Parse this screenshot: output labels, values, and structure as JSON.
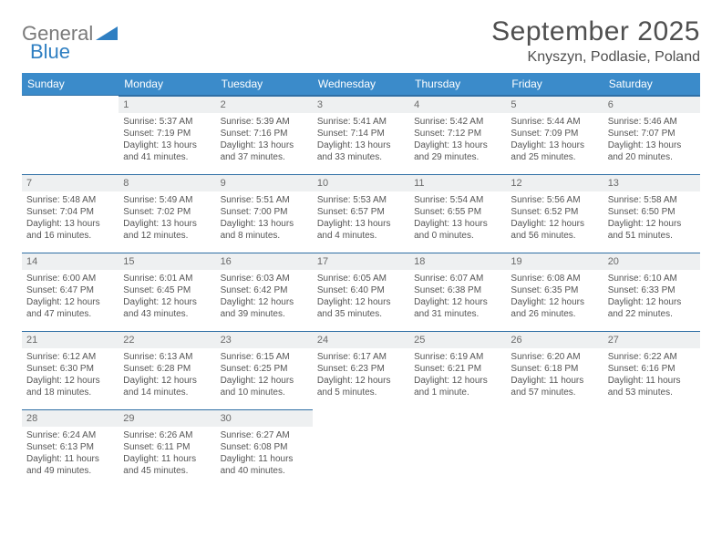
{
  "brand": {
    "part1": "General",
    "part2": "Blue"
  },
  "title": "September 2025",
  "location": "Knyszyn, Podlasie, Poland",
  "colors": {
    "header_bg": "#3b8bca",
    "header_border": "#2f6fa5",
    "daybar_bg": "#eef0f1",
    "text": "#4f4f4f",
    "brand_gray": "#7a7a7a",
    "brand_blue": "#2f7fc2"
  },
  "weekdays": [
    "Sunday",
    "Monday",
    "Tuesday",
    "Wednesday",
    "Thursday",
    "Friday",
    "Saturday"
  ],
  "weeks": [
    [
      null,
      {
        "n": "1",
        "sr": "Sunrise: 5:37 AM",
        "ss": "Sunset: 7:19 PM",
        "dl1": "Daylight: 13 hours",
        "dl2": "and 41 minutes."
      },
      {
        "n": "2",
        "sr": "Sunrise: 5:39 AM",
        "ss": "Sunset: 7:16 PM",
        "dl1": "Daylight: 13 hours",
        "dl2": "and 37 minutes."
      },
      {
        "n": "3",
        "sr": "Sunrise: 5:41 AM",
        "ss": "Sunset: 7:14 PM",
        "dl1": "Daylight: 13 hours",
        "dl2": "and 33 minutes."
      },
      {
        "n": "4",
        "sr": "Sunrise: 5:42 AM",
        "ss": "Sunset: 7:12 PM",
        "dl1": "Daylight: 13 hours",
        "dl2": "and 29 minutes."
      },
      {
        "n": "5",
        "sr": "Sunrise: 5:44 AM",
        "ss": "Sunset: 7:09 PM",
        "dl1": "Daylight: 13 hours",
        "dl2": "and 25 minutes."
      },
      {
        "n": "6",
        "sr": "Sunrise: 5:46 AM",
        "ss": "Sunset: 7:07 PM",
        "dl1": "Daylight: 13 hours",
        "dl2": "and 20 minutes."
      }
    ],
    [
      {
        "n": "7",
        "sr": "Sunrise: 5:48 AM",
        "ss": "Sunset: 7:04 PM",
        "dl1": "Daylight: 13 hours",
        "dl2": "and 16 minutes."
      },
      {
        "n": "8",
        "sr": "Sunrise: 5:49 AM",
        "ss": "Sunset: 7:02 PM",
        "dl1": "Daylight: 13 hours",
        "dl2": "and 12 minutes."
      },
      {
        "n": "9",
        "sr": "Sunrise: 5:51 AM",
        "ss": "Sunset: 7:00 PM",
        "dl1": "Daylight: 13 hours",
        "dl2": "and 8 minutes."
      },
      {
        "n": "10",
        "sr": "Sunrise: 5:53 AM",
        "ss": "Sunset: 6:57 PM",
        "dl1": "Daylight: 13 hours",
        "dl2": "and 4 minutes."
      },
      {
        "n": "11",
        "sr": "Sunrise: 5:54 AM",
        "ss": "Sunset: 6:55 PM",
        "dl1": "Daylight: 13 hours",
        "dl2": "and 0 minutes."
      },
      {
        "n": "12",
        "sr": "Sunrise: 5:56 AM",
        "ss": "Sunset: 6:52 PM",
        "dl1": "Daylight: 12 hours",
        "dl2": "and 56 minutes."
      },
      {
        "n": "13",
        "sr": "Sunrise: 5:58 AM",
        "ss": "Sunset: 6:50 PM",
        "dl1": "Daylight: 12 hours",
        "dl2": "and 51 minutes."
      }
    ],
    [
      {
        "n": "14",
        "sr": "Sunrise: 6:00 AM",
        "ss": "Sunset: 6:47 PM",
        "dl1": "Daylight: 12 hours",
        "dl2": "and 47 minutes."
      },
      {
        "n": "15",
        "sr": "Sunrise: 6:01 AM",
        "ss": "Sunset: 6:45 PM",
        "dl1": "Daylight: 12 hours",
        "dl2": "and 43 minutes."
      },
      {
        "n": "16",
        "sr": "Sunrise: 6:03 AM",
        "ss": "Sunset: 6:42 PM",
        "dl1": "Daylight: 12 hours",
        "dl2": "and 39 minutes."
      },
      {
        "n": "17",
        "sr": "Sunrise: 6:05 AM",
        "ss": "Sunset: 6:40 PM",
        "dl1": "Daylight: 12 hours",
        "dl2": "and 35 minutes."
      },
      {
        "n": "18",
        "sr": "Sunrise: 6:07 AM",
        "ss": "Sunset: 6:38 PM",
        "dl1": "Daylight: 12 hours",
        "dl2": "and 31 minutes."
      },
      {
        "n": "19",
        "sr": "Sunrise: 6:08 AM",
        "ss": "Sunset: 6:35 PM",
        "dl1": "Daylight: 12 hours",
        "dl2": "and 26 minutes."
      },
      {
        "n": "20",
        "sr": "Sunrise: 6:10 AM",
        "ss": "Sunset: 6:33 PM",
        "dl1": "Daylight: 12 hours",
        "dl2": "and 22 minutes."
      }
    ],
    [
      {
        "n": "21",
        "sr": "Sunrise: 6:12 AM",
        "ss": "Sunset: 6:30 PM",
        "dl1": "Daylight: 12 hours",
        "dl2": "and 18 minutes."
      },
      {
        "n": "22",
        "sr": "Sunrise: 6:13 AM",
        "ss": "Sunset: 6:28 PM",
        "dl1": "Daylight: 12 hours",
        "dl2": "and 14 minutes."
      },
      {
        "n": "23",
        "sr": "Sunrise: 6:15 AM",
        "ss": "Sunset: 6:25 PM",
        "dl1": "Daylight: 12 hours",
        "dl2": "and 10 minutes."
      },
      {
        "n": "24",
        "sr": "Sunrise: 6:17 AM",
        "ss": "Sunset: 6:23 PM",
        "dl1": "Daylight: 12 hours",
        "dl2": "and 5 minutes."
      },
      {
        "n": "25",
        "sr": "Sunrise: 6:19 AM",
        "ss": "Sunset: 6:21 PM",
        "dl1": "Daylight: 12 hours",
        "dl2": "and 1 minute."
      },
      {
        "n": "26",
        "sr": "Sunrise: 6:20 AM",
        "ss": "Sunset: 6:18 PM",
        "dl1": "Daylight: 11 hours",
        "dl2": "and 57 minutes."
      },
      {
        "n": "27",
        "sr": "Sunrise: 6:22 AM",
        "ss": "Sunset: 6:16 PM",
        "dl1": "Daylight: 11 hours",
        "dl2": "and 53 minutes."
      }
    ],
    [
      {
        "n": "28",
        "sr": "Sunrise: 6:24 AM",
        "ss": "Sunset: 6:13 PM",
        "dl1": "Daylight: 11 hours",
        "dl2": "and 49 minutes."
      },
      {
        "n": "29",
        "sr": "Sunrise: 6:26 AM",
        "ss": "Sunset: 6:11 PM",
        "dl1": "Daylight: 11 hours",
        "dl2": "and 45 minutes."
      },
      {
        "n": "30",
        "sr": "Sunrise: 6:27 AM",
        "ss": "Sunset: 6:08 PM",
        "dl1": "Daylight: 11 hours",
        "dl2": "and 40 minutes."
      },
      null,
      null,
      null,
      null
    ]
  ]
}
